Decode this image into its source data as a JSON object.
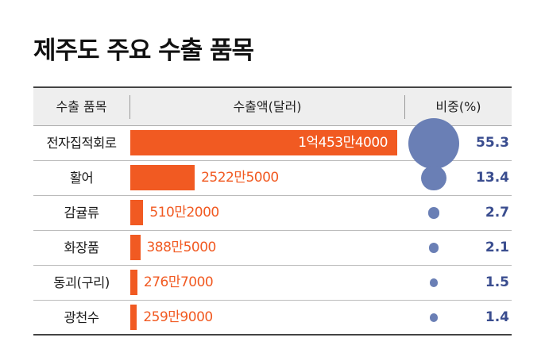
{
  "title": "제주도 주요 수출 품목",
  "columns": {
    "item": "수출 품목",
    "amount": "수출액(달러)",
    "share": "비중(%)"
  },
  "colors": {
    "bar": "#f15a22",
    "bubble": "#6a7fb5",
    "share_text": "#3a4d8f"
  },
  "chart_data": {
    "type": "bar",
    "title": "제주도 주요 수출 품목",
    "categories": [
      "전자집적회로",
      "활어",
      "감귤류",
      "화장품",
      "동괴(구리)",
      "광천수"
    ],
    "series": [
      {
        "name": "수출액(달러)",
        "values": [
          104534000,
          25225000,
          5102000,
          3885000,
          2767000,
          2599000
        ],
        "labels": [
          "1억453만4000",
          "2522만5000",
          "510만2000",
          "388만5000",
          "276만7000",
          "259만9000"
        ]
      },
      {
        "name": "비중(%)",
        "values": [
          55.3,
          13.4,
          2.7,
          2.1,
          1.5,
          1.4
        ],
        "labels": [
          "55.3",
          "13.4",
          "2.7",
          "2.1",
          "1.5",
          "1.4"
        ]
      }
    ],
    "legend": "none",
    "grid": false
  }
}
